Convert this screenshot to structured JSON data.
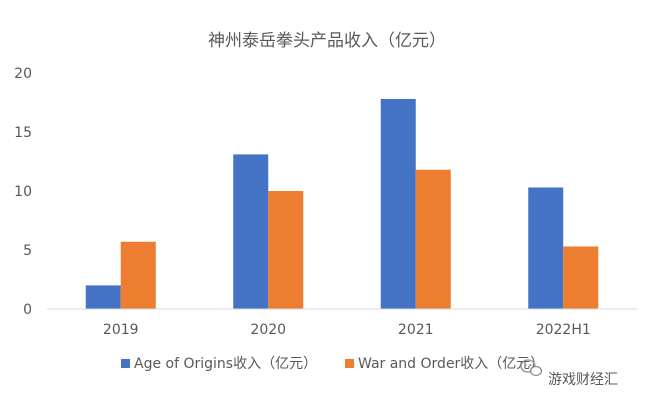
{
  "chart_data": {
    "type": "bar",
    "title": "神州泰岳拳头产品收入（亿元）",
    "categories": [
      "2019",
      "2020",
      "2021",
      "2022H1"
    ],
    "series": [
      {
        "name": "Age of Origins收入（亿元）",
        "values": [
          2.0,
          13.1,
          17.8,
          10.3
        ],
        "color": "#4472C4"
      },
      {
        "name": "War and Order收入（亿元）",
        "values": [
          5.7,
          10.0,
          11.8,
          5.3
        ],
        "color": "#ED7D31"
      }
    ],
    "ylim": [
      0,
      20
    ],
    "yticks": [
      0,
      5,
      10,
      15,
      20
    ],
    "xlabel": "",
    "ylabel": "",
    "grid": false,
    "legend_position": "bottom"
  },
  "watermark": {
    "text": "游戏财经汇",
    "icon": "wechat-icon"
  }
}
